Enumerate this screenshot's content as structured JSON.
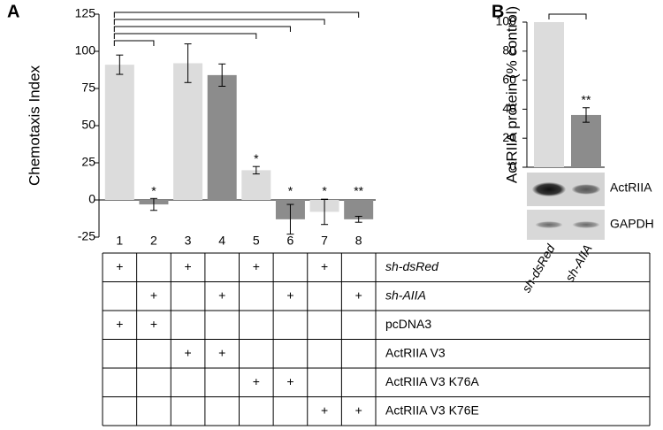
{
  "chart_data": [
    {
      "type": "bar",
      "label": "A",
      "ylabel": "Chemotaxis Index",
      "categories": [
        "1",
        "2",
        "3",
        "4",
        "5",
        "6",
        "7",
        "8"
      ],
      "values": [
        91,
        -3,
        92,
        84,
        20,
        -13,
        -8,
        -13
      ],
      "errors": [
        6.5,
        4,
        13,
        7.5,
        2.5,
        10,
        8.5,
        2
      ],
      "colors": [
        "#dcdcdc",
        "#8c8c8c",
        "#dcdcdc",
        "#8c8c8c",
        "#dcdcdc",
        "#8c8c8c",
        "#dcdcdc",
        "#8c8c8c"
      ],
      "annotations": [
        null,
        "*",
        null,
        null,
        "*",
        "*",
        "*",
        "**"
      ],
      "ylim": [
        -25,
        125
      ],
      "yticks": [
        -25,
        0,
        25,
        50,
        75,
        100,
        125
      ]
    },
    {
      "type": "bar",
      "label": "B",
      "ylabel": "ActRIIA protein (% control)",
      "categories": [
        "sh-dsRed",
        "sh-AIIA"
      ],
      "values": [
        100,
        36
      ],
      "errors": [
        0,
        5
      ],
      "colors": [
        "#dcdcdc",
        "#8c8c8c"
      ],
      "annotations": [
        null,
        "**"
      ],
      "ylim": [
        0,
        100
      ],
      "yticks": [
        0,
        20,
        40,
        60,
        80,
        100
      ],
      "blot_labels": [
        "ActRIIA",
        "GAPDH"
      ]
    }
  ],
  "table": {
    "rows": [
      {
        "label": "sh-dsRed",
        "cells": [
          "+",
          null,
          "+",
          null,
          "+",
          null,
          "+",
          null
        ]
      },
      {
        "label": "sh-AIIA",
        "cells": [
          null,
          "+",
          null,
          "+",
          null,
          "+",
          null,
          "+"
        ]
      },
      {
        "label": "pcDNA3",
        "cells": [
          "+",
          "+",
          null,
          null,
          null,
          null,
          null,
          null
        ]
      },
      {
        "label": "ActRIIA V3",
        "cells": [
          null,
          null,
          "+",
          "+",
          null,
          null,
          null,
          null
        ]
      },
      {
        "label": "ActRIIA V3 K76A",
        "cells": [
          null,
          null,
          null,
          null,
          "+",
          "+",
          null,
          null
        ]
      },
      {
        "label": "ActRIIA V3 K76E",
        "cells": [
          null,
          null,
          null,
          null,
          null,
          null,
          "+",
          "+"
        ]
      }
    ]
  }
}
